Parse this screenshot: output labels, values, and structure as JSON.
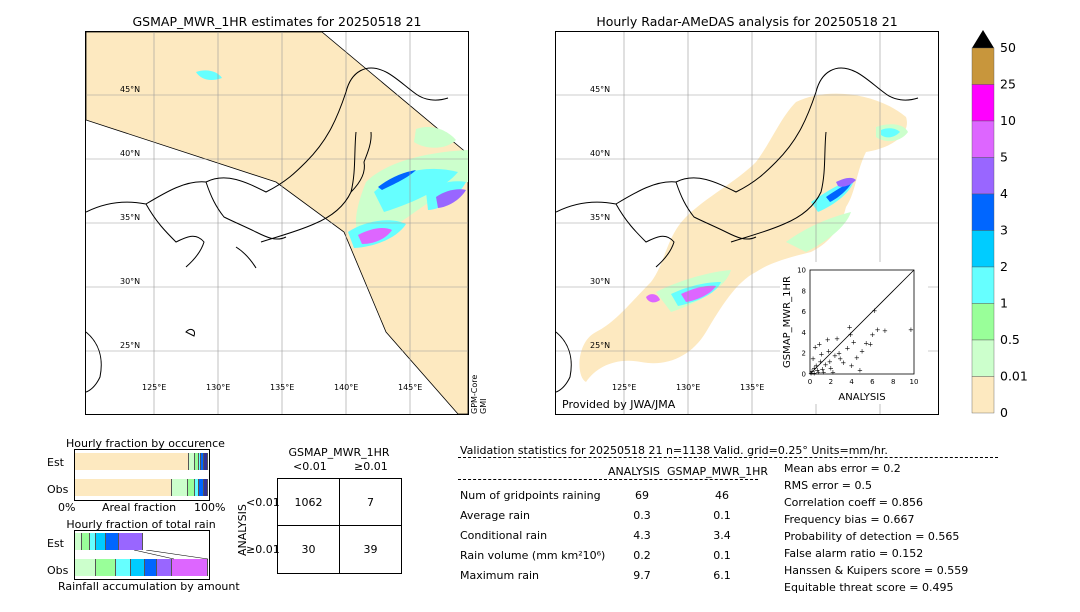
{
  "left_map": {
    "title": "GSMAP_MWR_1HR estimates for 20250518 21",
    "lat_labels": [
      "45°N",
      "40°N",
      "35°N",
      "30°N",
      "25°N"
    ],
    "lon_labels": [
      "125°E",
      "130°E",
      "135°E",
      "140°E",
      "145°E"
    ],
    "side_label_1": "GPM-Core",
    "side_label_2": "GMI"
  },
  "right_map": {
    "title": "Hourly Radar-AMeDAS analysis for 20250518 21",
    "lat_labels": [
      "45°N",
      "40°N",
      "35°N",
      "30°N",
      "25°N"
    ],
    "lon_labels": [
      "125°E",
      "130°E",
      "135°E"
    ],
    "credit": "Provided by JWA/JMA"
  },
  "scatter": {
    "xlabel": "ANALYSIS",
    "ylabel": "GSMAP_MWR_1HR",
    "ticks": [
      "0",
      "2",
      "4",
      "6",
      "8",
      "10"
    ],
    "points": [
      [
        0.2,
        0.3
      ],
      [
        0.4,
        0.1
      ],
      [
        0.6,
        0.8
      ],
      [
        0.8,
        0.2
      ],
      [
        1.0,
        1.2
      ],
      [
        1.2,
        0.5
      ],
      [
        0.3,
        1.5
      ],
      [
        1.5,
        0.9
      ],
      [
        1.8,
        2.2
      ],
      [
        2.0,
        0.6
      ],
      [
        2.4,
        1.8
      ],
      [
        0.5,
        2.6
      ],
      [
        1.1,
        1.9
      ],
      [
        2.8,
        2.0
      ],
      [
        3.2,
        1.1
      ],
      [
        3.6,
        2.5
      ],
      [
        4.0,
        0.8
      ],
      [
        4.2,
        3.1
      ],
      [
        4.5,
        1.6
      ],
      [
        5.0,
        2.2
      ],
      [
        5.4,
        3.0
      ],
      [
        6.0,
        3.8
      ],
      [
        6.5,
        4.3
      ],
      [
        7.2,
        4.2
      ],
      [
        3.8,
        4.5
      ],
      [
        1.7,
        3.3
      ],
      [
        0.9,
        2.9
      ],
      [
        2.2,
        0.2
      ],
      [
        2.6,
        3.4
      ],
      [
        0.1,
        0.1
      ],
      [
        0.7,
        0.4
      ],
      [
        1.3,
        0.2
      ],
      [
        9.7,
        4.3
      ],
      [
        3.9,
        3.8
      ],
      [
        5.8,
        2.9
      ],
      [
        4.8,
        0.4
      ],
      [
        6.2,
        6.1
      ],
      [
        1.9,
        1.2
      ],
      [
        0.4,
        0.6
      ],
      [
        2.9,
        1.5
      ]
    ]
  },
  "colorbar": {
    "labels": [
      "50",
      "25",
      "10",
      "5",
      "4",
      "3",
      "2",
      "1",
      "0.5",
      "0.01",
      "0"
    ],
    "colors": [
      "#c8963c",
      "#ff00ff",
      "#dd66ff",
      "#9966ff",
      "#0066ff",
      "#00ccff",
      "#66ffff",
      "#99ff99",
      "#ccffcc",
      "#fde9c0"
    ],
    "extend_color": "#000000"
  },
  "occurrence": {
    "title": "Hourly fraction by occurence",
    "row_labels": [
      "Est",
      "Obs"
    ],
    "axis_left": "0%",
    "axis_mid": "Areal fraction",
    "axis_right": "100%",
    "est_fractions": [
      0.86,
      0.04,
      0.03,
      0.02,
      0.02,
      0.03
    ],
    "obs_fractions": [
      0.73,
      0.12,
      0.05,
      0.03,
      0.04,
      0.03
    ],
    "segment_colors": [
      "#fde9c0",
      "#ccffcc",
      "#99ff99",
      "#66ffff",
      "#0066ff",
      "#333399"
    ]
  },
  "total_rain": {
    "title": "Hourly fraction of total rain",
    "row_labels": [
      "Est",
      "Obs"
    ],
    "footer": "Rainfall accumulation by amount",
    "est_fractions": [
      0.05,
      0.06,
      0.05,
      0.07,
      0.1,
      0.18
    ],
    "obs_fractions": [
      0.17,
      0.17,
      0.12,
      0.12,
      0.1,
      0.12,
      0.3
    ],
    "segment_colors": [
      "#ccffcc",
      "#99ff99",
      "#66ffff",
      "#00ccff",
      "#0066ff",
      "#9966ff",
      "#dd66ff"
    ]
  },
  "contingency": {
    "title": "GSMAP_MWR_1HR",
    "col_labels": [
      "<0.01",
      "≥0.01"
    ],
    "row_labels": [
      "<0.01",
      "≥0.01"
    ],
    "side_label": "ANALYSIS",
    "cells": [
      "1062",
      "7",
      "30",
      "39"
    ]
  },
  "validation": {
    "header": "Validation statistics for 20250518 21  n=1138 Valid. grid=0.25° Units=mm/hr.",
    "col_analysis": "ANALYSIS",
    "col_gsmap": "GSMAP_MWR_1HR",
    "rows": [
      {
        "label": "Num of gridpoints raining",
        "a": "69",
        "g": "46"
      },
      {
        "label": "Average rain",
        "a": "0.3",
        "g": "0.1"
      },
      {
        "label": "Conditional rain",
        "a": "4.3",
        "g": "3.4"
      },
      {
        "label": "Rain volume (mm km²10⁶)",
        "a": "0.2",
        "g": "0.1"
      },
      {
        "label": "Maximum rain",
        "a": "9.7",
        "g": "6.1"
      }
    ],
    "scores": [
      "Mean abs error =    0.2",
      "RMS error =    0.5",
      "Correlation coeff =  0.856",
      "Frequency bias =  0.667",
      "Probability of detection =  0.565",
      "False alarm ratio =  0.152",
      "Hanssen & Kuipers score =  0.559",
      "Equitable threat score =  0.495"
    ]
  }
}
